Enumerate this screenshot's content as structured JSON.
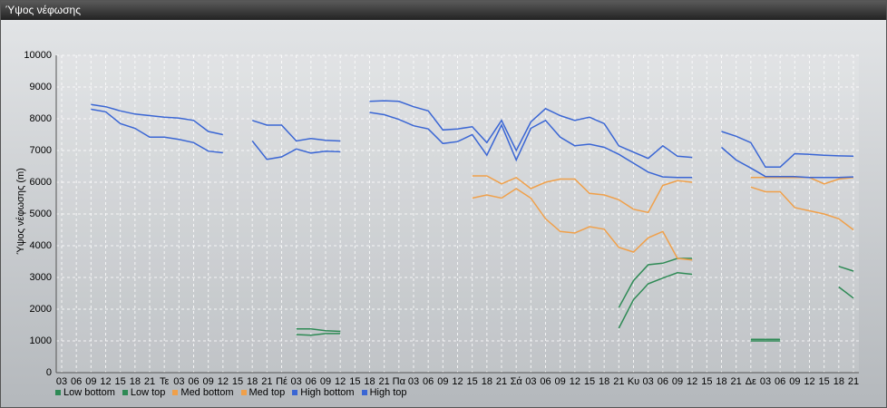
{
  "window_title": "Ύψος νέφωσης",
  "chart_data": {
    "type": "line",
    "y_label": "Ύψος νέφωσης (m)",
    "ylim": [
      0,
      10000
    ],
    "yticks": [
      0,
      1000,
      2000,
      3000,
      4000,
      5000,
      6000,
      7000,
      8000,
      9000,
      10000
    ],
    "grid": true,
    "legend": "bottom",
    "categories": [
      "03",
      "06",
      "09",
      "12",
      "15",
      "18",
      "21",
      "Τε",
      "03",
      "06",
      "09",
      "12",
      "15",
      "18",
      "21",
      "Πέ",
      "03",
      "06",
      "09",
      "12",
      "15",
      "18",
      "21",
      "Πα",
      "03",
      "06",
      "09",
      "12",
      "15",
      "18",
      "21",
      "Σά",
      "03",
      "06",
      "09",
      "12",
      "15",
      "18",
      "21",
      "Κυ",
      "03",
      "06",
      "09",
      "12",
      "15",
      "18",
      "21",
      "Δε",
      "03",
      "06",
      "09",
      "12",
      "15",
      "18",
      "21"
    ],
    "series": [
      {
        "name": "Low bottom",
        "color": "#2e8a55",
        "values": [
          null,
          null,
          null,
          null,
          null,
          null,
          null,
          null,
          null,
          null,
          null,
          null,
          null,
          null,
          null,
          null,
          1200,
          1180,
          1230,
          1230,
          null,
          null,
          null,
          null,
          null,
          null,
          null,
          null,
          null,
          null,
          null,
          null,
          null,
          null,
          null,
          null,
          null,
          null,
          1400,
          2300,
          2800,
          2980,
          3150,
          3100,
          null,
          null,
          null,
          1000,
          1000,
          1000,
          null,
          null,
          null,
          2700,
          2350
        ]
      },
      {
        "name": "Low top",
        "color": "#2e8a55",
        "values": [
          null,
          null,
          null,
          null,
          null,
          null,
          null,
          null,
          null,
          null,
          null,
          null,
          null,
          null,
          null,
          null,
          1380,
          1380,
          1320,
          1300,
          null,
          null,
          null,
          null,
          null,
          null,
          null,
          null,
          null,
          null,
          null,
          null,
          null,
          null,
          null,
          null,
          null,
          null,
          2050,
          2900,
          3400,
          3450,
          3600,
          3600,
          null,
          null,
          null,
          1050,
          1050,
          1050,
          null,
          null,
          null,
          3350,
          3200
        ]
      },
      {
        "name": "Med bottom",
        "color": "#f0a04a",
        "values": [
          null,
          null,
          null,
          null,
          null,
          null,
          null,
          null,
          null,
          null,
          null,
          null,
          null,
          null,
          null,
          null,
          null,
          null,
          null,
          null,
          null,
          null,
          null,
          null,
          null,
          null,
          null,
          null,
          5500,
          5600,
          5500,
          5800,
          5500,
          4850,
          4450,
          4400,
          4600,
          4520,
          3950,
          3800,
          4250,
          4450,
          3600,
          3550,
          null,
          null,
          null,
          5850,
          5700,
          5700,
          5200,
          5100,
          5000,
          4850,
          4500
        ]
      },
      {
        "name": "Med top",
        "color": "#f0a04a",
        "values": [
          null,
          null,
          null,
          null,
          null,
          null,
          null,
          null,
          null,
          null,
          null,
          null,
          null,
          null,
          null,
          null,
          null,
          null,
          null,
          null,
          null,
          null,
          null,
          null,
          null,
          null,
          null,
          null,
          6200,
          6200,
          5950,
          6150,
          5800,
          6000,
          6100,
          6100,
          5650,
          5600,
          5450,
          5150,
          5050,
          5900,
          6050,
          6000,
          null,
          null,
          null,
          6150,
          6150,
          6150,
          6150,
          6150,
          5950,
          6100,
          6150
        ]
      },
      {
        "name": "High bottom",
        "color": "#3a66d4",
        "values": [
          null,
          null,
          8300,
          8220,
          7850,
          7700,
          7420,
          7420,
          7350,
          7250,
          6980,
          6930,
          null,
          7300,
          6720,
          6800,
          7050,
          6920,
          6980,
          6960,
          null,
          8200,
          8130,
          7980,
          7780,
          7680,
          7220,
          7280,
          7500,
          6850,
          7800,
          6700,
          7700,
          7950,
          7420,
          7150,
          7200,
          7100,
          6880,
          6600,
          6320,
          6170,
          6150,
          6150,
          null,
          7100,
          6700,
          6450,
          6180,
          6180,
          6180,
          6150,
          6150,
          6150,
          6170
        ]
      },
      {
        "name": "High top",
        "color": "#3a66d4",
        "values": [
          null,
          null,
          8450,
          8380,
          8250,
          8150,
          8100,
          8050,
          8020,
          7950,
          7600,
          7500,
          null,
          7950,
          7800,
          7800,
          7300,
          7380,
          7320,
          7300,
          null,
          8550,
          8570,
          8550,
          8380,
          8250,
          7650,
          7680,
          7750,
          7250,
          7950,
          7000,
          7900,
          8320,
          8100,
          7950,
          8050,
          7850,
          7150,
          6950,
          6750,
          7150,
          6820,
          6780,
          null,
          7600,
          7450,
          7250,
          6480,
          6480,
          6900,
          6880,
          6850,
          6830,
          6820
        ]
      }
    ]
  }
}
